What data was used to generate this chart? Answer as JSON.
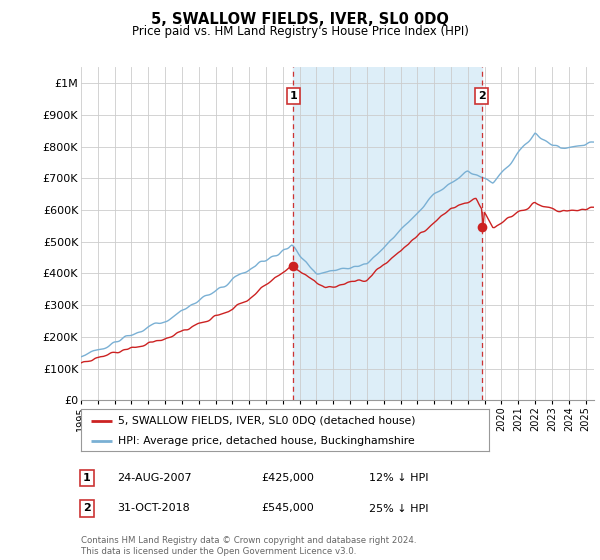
{
  "title": "5, SWALLOW FIELDS, IVER, SL0 0DQ",
  "subtitle": "Price paid vs. HM Land Registry's House Price Index (HPI)",
  "ylabel_ticks": [
    "£0",
    "£100K",
    "£200K",
    "£300K",
    "£400K",
    "£500K",
    "£600K",
    "£700K",
    "£800K",
    "£900K",
    "£1M"
  ],
  "ytick_values": [
    0,
    100000,
    200000,
    300000,
    400000,
    500000,
    600000,
    700000,
    800000,
    900000,
    1000000
  ],
  "ylim": [
    0,
    1050000
  ],
  "xlim_start": 1995.0,
  "xlim_end": 2025.5,
  "hpi_color": "#7ab0d4",
  "hpi_fill_color": "#ddeef8",
  "price_color": "#cc2222",
  "marker1_date": 2007.62,
  "marker1_price": 425000,
  "marker2_date": 2018.83,
  "marker2_price": 545000,
  "marker1_label": "1",
  "marker2_label": "2",
  "vline_color": "#cc3333",
  "legend_house": "5, SWALLOW FIELDS, IVER, SL0 0DQ (detached house)",
  "legend_hpi": "HPI: Average price, detached house, Buckinghamshire",
  "table_row1": [
    "1",
    "24-AUG-2007",
    "£425,000",
    "12% ↓ HPI"
  ],
  "table_row2": [
    "2",
    "31-OCT-2018",
    "£545,000",
    "25% ↓ HPI"
  ],
  "footnote": "Contains HM Land Registry data © Crown copyright and database right 2024.\nThis data is licensed under the Open Government Licence v3.0.",
  "background_color": "#ffffff",
  "grid_color": "#cccccc"
}
